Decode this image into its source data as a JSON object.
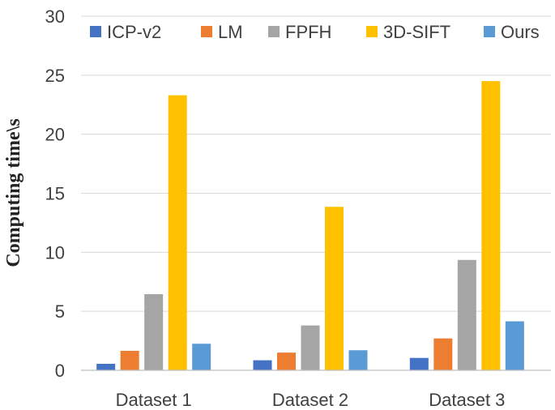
{
  "chart_data": {
    "type": "bar",
    "title": "",
    "xlabel": "",
    "ylabel": "Computing time\\s",
    "ylim": [
      0,
      30
    ],
    "yticks": [
      0,
      5,
      10,
      15,
      20,
      25,
      30
    ],
    "grid": true,
    "legend_position": "top",
    "categories": [
      "Dataset 1",
      "Dataset 2",
      "Dataset 3"
    ],
    "series": [
      {
        "name": "ICP-v2",
        "color": "#4472c4",
        "values": [
          0.55,
          0.85,
          1.05
        ]
      },
      {
        "name": "LM",
        "color": "#ed7d31",
        "values": [
          1.65,
          1.5,
          2.7
        ]
      },
      {
        "name": "FPFH",
        "color": "#a5a5a5",
        "values": [
          6.45,
          3.8,
          9.35
        ]
      },
      {
        "name": "3D-SIFT",
        "color": "#ffc000",
        "values": [
          23.3,
          13.85,
          24.5
        ]
      },
      {
        "name": "Ours",
        "color": "#5b9bd5",
        "values": [
          2.25,
          1.7,
          4.15
        ]
      }
    ]
  }
}
